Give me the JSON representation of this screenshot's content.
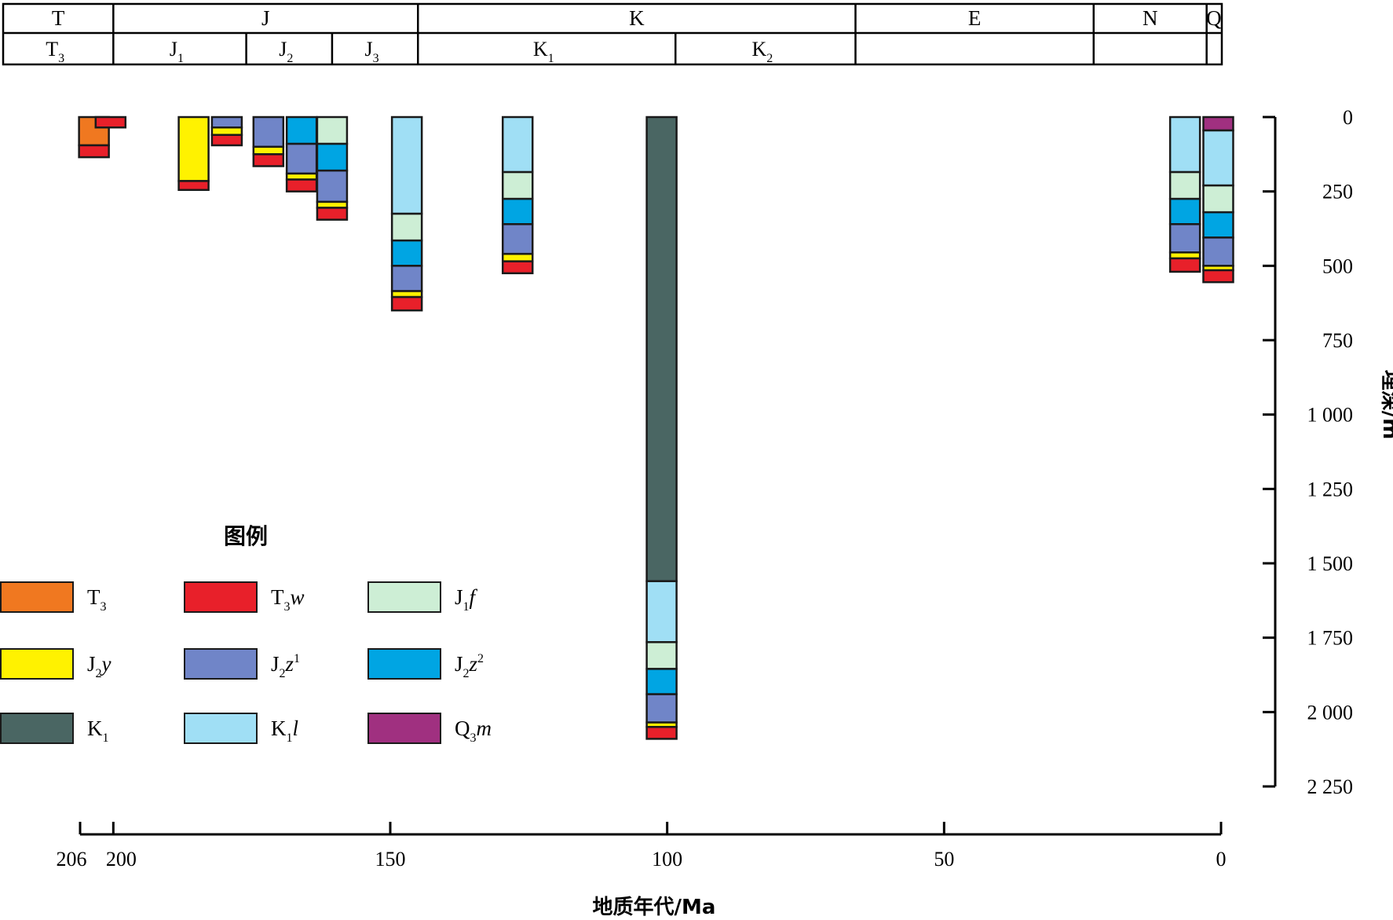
{
  "chart_data": {
    "type": "bar",
    "colors": {
      "T3": "#f07820",
      "T3w": "#e8202a",
      "J1f": "#cdeed5",
      "J2y": "#fff200",
      "J2z1": "#7085c8",
      "J2z2": "#00a5e3",
      "K1": "#4a6663",
      "K1l": "#a0dff5",
      "Q3m": "#a03080"
    },
    "strat_header": {
      "systems": [
        {
          "label": "T",
          "from": 206,
          "to": 200
        },
        {
          "label": "J",
          "from": 200,
          "to": 145
        },
        {
          "label": "K",
          "from": 145,
          "to": 66
        },
        {
          "label": "E",
          "from": 66,
          "to": 23
        },
        {
          "label": "N",
          "from": 23,
          "to": 2.6
        },
        {
          "label": "Q",
          "from": 2.6,
          "to": 0
        }
      ],
      "series": [
        {
          "base": "T",
          "sub": "3",
          "from": 206,
          "to": 200
        },
        {
          "base": "J",
          "sub": "1",
          "from": 200,
          "to": 176
        },
        {
          "base": "J",
          "sub": "2",
          "from": 176,
          "to": 160.5
        },
        {
          "base": "J",
          "sub": "3",
          "from": 160.5,
          "to": 145
        },
        {
          "base": "K",
          "sub": "1",
          "from": 145,
          "to": 98.5
        },
        {
          "base": "K",
          "sub": "2",
          "from": 98.5,
          "to": 66
        },
        {
          "base": "",
          "sub": "",
          "from": 66,
          "to": 23
        },
        {
          "base": "",
          "sub": "",
          "from": 23,
          "to": 2.6
        },
        {
          "base": "",
          "sub": "",
          "from": 2.6,
          "to": 0
        }
      ]
    },
    "columns": [
      {
        "age": 203.5,
        "layers": [
          [
            "T3",
            0,
            95
          ],
          [
            "T3w",
            95,
            135
          ]
        ]
      },
      {
        "age": 200.5,
        "layers": [
          [
            "T3w",
            0,
            35
          ]
        ]
      },
      {
        "age": 185.5,
        "layers": [
          [
            "J2y",
            0,
            215
          ],
          [
            "T3w",
            215,
            245
          ]
        ]
      },
      {
        "age": 179.5,
        "layers": [
          [
            "J2z1",
            0,
            35
          ],
          [
            "J2y",
            35,
            60
          ],
          [
            "T3w",
            60,
            95
          ]
        ]
      },
      {
        "age": 172,
        "layers": [
          [
            "J2z1",
            0,
            100
          ],
          [
            "J2y",
            100,
            125
          ],
          [
            "T3w",
            125,
            165
          ]
        ]
      },
      {
        "age": 166,
        "layers": [
          [
            "J2z2",
            0,
            90
          ],
          [
            "J2z1",
            90,
            190
          ],
          [
            "J2y",
            190,
            210
          ],
          [
            "T3w",
            210,
            250
          ]
        ]
      },
      {
        "age": 160.5,
        "layers": [
          [
            "J1f",
            0,
            90
          ],
          [
            "J2z2",
            90,
            180
          ],
          [
            "J2z1",
            180,
            285
          ],
          [
            "J2y",
            285,
            305
          ],
          [
            "T3w",
            305,
            345
          ]
        ]
      },
      {
        "age": 147,
        "layers": [
          [
            "K1l",
            0,
            325
          ],
          [
            "J1f",
            325,
            415
          ],
          [
            "J2z2",
            415,
            500
          ],
          [
            "J2z1",
            500,
            585
          ],
          [
            "J2y",
            585,
            605
          ],
          [
            "T3w",
            605,
            650
          ]
        ]
      },
      {
        "age": 127,
        "layers": [
          [
            "K1l",
            0,
            185
          ],
          [
            "J1f",
            185,
            275
          ],
          [
            "J2z2",
            275,
            360
          ],
          [
            "J2z1",
            360,
            460
          ],
          [
            "J2y",
            460,
            485
          ],
          [
            "T3w",
            485,
            525
          ]
        ]
      },
      {
        "age": 101,
        "layers": [
          [
            "K1",
            0,
            1560
          ],
          [
            "K1l",
            1560,
            1765
          ],
          [
            "J1f",
            1765,
            1855
          ],
          [
            "J2z2",
            1855,
            1940
          ],
          [
            "J2z1",
            1940,
            2035
          ],
          [
            "J2y",
            2035,
            2050
          ],
          [
            "T3w",
            2050,
            2090
          ]
        ]
      },
      {
        "age": 6.5,
        "layers": [
          [
            "K1l",
            0,
            185
          ],
          [
            "J1f",
            185,
            275
          ],
          [
            "J2z2",
            275,
            360
          ],
          [
            "J2z1",
            360,
            455
          ],
          [
            "J2y",
            455,
            475
          ],
          [
            "T3w",
            475,
            520
          ]
        ]
      },
      {
        "age": 0.5,
        "layers": [
          [
            "Q3m",
            0,
            45
          ],
          [
            "K1l",
            45,
            230
          ],
          [
            "J1f",
            230,
            320
          ],
          [
            "J2z2",
            320,
            405
          ],
          [
            "J2z1",
            405,
            500
          ],
          [
            "J2y",
            500,
            515
          ],
          [
            "T3w",
            515,
            555
          ]
        ]
      }
    ],
    "yaxis": {
      "label": "埋深/m",
      "ylim": [
        0,
        2250
      ],
      "ticks": [
        0,
        250,
        500,
        750,
        1000,
        1250,
        1500,
        1750,
        2000,
        2250
      ],
      "tick_labels": [
        "0",
        "250",
        "500",
        "750",
        "1 000",
        "1 250",
        "1 500",
        "1 750",
        "2 000",
        "2 250"
      ]
    },
    "xaxis": {
      "label": "地质年代/Ma",
      "xlim": [
        206,
        0
      ],
      "ticks": [
        206,
        200,
        150,
        100,
        50,
        0
      ],
      "tick_labels": [
        "206",
        "200",
        "150",
        "100",
        "50",
        "0"
      ]
    },
    "legend": {
      "title": "图例",
      "placement": "bottom-left",
      "items": [
        {
          "key": "T3",
          "base": "T",
          "sub": "3",
          "italic": ""
        },
        {
          "key": "T3w",
          "base": "T",
          "sub": "3",
          "italic": "w"
        },
        {
          "key": "J1f",
          "base": "J",
          "sub": "1",
          "italic": "f"
        },
        {
          "key": "J2y",
          "base": "J",
          "sub": "2",
          "italic": "y"
        },
        {
          "key": "J2z1",
          "base": "J",
          "sub": "2",
          "italic": "z",
          "sup": "1"
        },
        {
          "key": "J2z2",
          "base": "J",
          "sub": "2",
          "italic": "z",
          "sup": "2"
        },
        {
          "key": "K1",
          "base": "K",
          "sub": "1",
          "italic": ""
        },
        {
          "key": "K1l",
          "base": "K",
          "sub": "1",
          "italic": "l"
        },
        {
          "key": "Q3m",
          "base": "Q",
          "sub": "3",
          "italic": "m"
        }
      ]
    }
  }
}
